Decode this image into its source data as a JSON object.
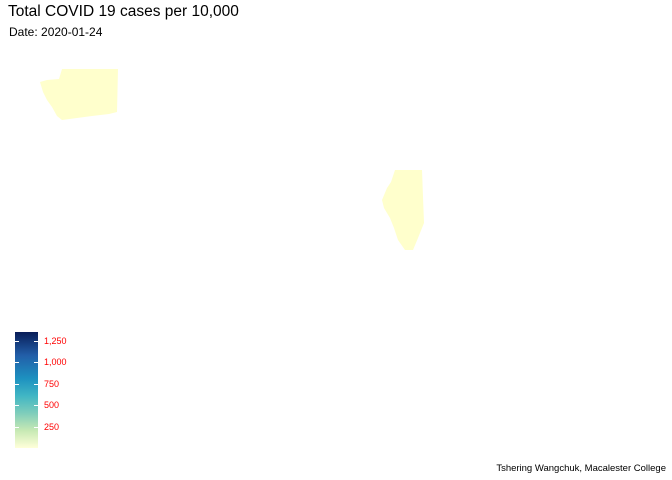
{
  "title": "Total COVID 19 cases per 10,000",
  "subtitle": "Date: 2020-01-24",
  "caption": "Tshering Wangchuk, Macalester College",
  "chart_data": {
    "type": "choropleth",
    "fill_scale": {
      "palette": "YlGnBu",
      "low_color": "#ffffd9",
      "high_color": "#081d58",
      "limits": [
        0,
        1350
      ],
      "ticks": [
        {
          "value": 1250,
          "label": "1,250"
        },
        {
          "value": 1000,
          "label": "1,000"
        },
        {
          "value": 750,
          "label": "750"
        },
        {
          "value": 500,
          "label": "500"
        },
        {
          "value": 250,
          "label": "250"
        }
      ],
      "tick_label_color": "#ff0000"
    },
    "regions": [
      {
        "region": "Washington",
        "fill": "#ffffcc"
      },
      {
        "region": "Illinois",
        "fill": "#ffffcc"
      }
    ]
  }
}
